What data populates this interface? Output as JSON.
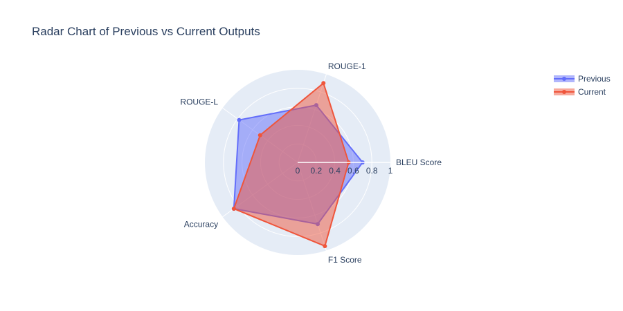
{
  "chart_data": {
    "type": "radar",
    "title": "Radar Chart of Previous vs Current Outputs",
    "categories": [
      "BLEU Score",
      "ROUGE-1",
      "ROUGE-L",
      "Accuracy",
      "F1 Score"
    ],
    "radial_ticks": [
      "0",
      "0.2",
      "0.4",
      "0.6",
      "0.8",
      "1"
    ],
    "rlim": [
      0,
      1
    ],
    "legend_position": "top-right",
    "series": [
      {
        "name": "Previous",
        "values": [
          0.7,
          0.65,
          0.78,
          0.85,
          0.7
        ],
        "color": "#636efa"
      },
      {
        "name": "Current",
        "values": [
          0.55,
          0.9,
          0.5,
          0.85,
          0.95
        ],
        "color": "#ef553b"
      }
    ],
    "plot_background": "#e5ecf6",
    "grid_color": "#ffffff"
  }
}
